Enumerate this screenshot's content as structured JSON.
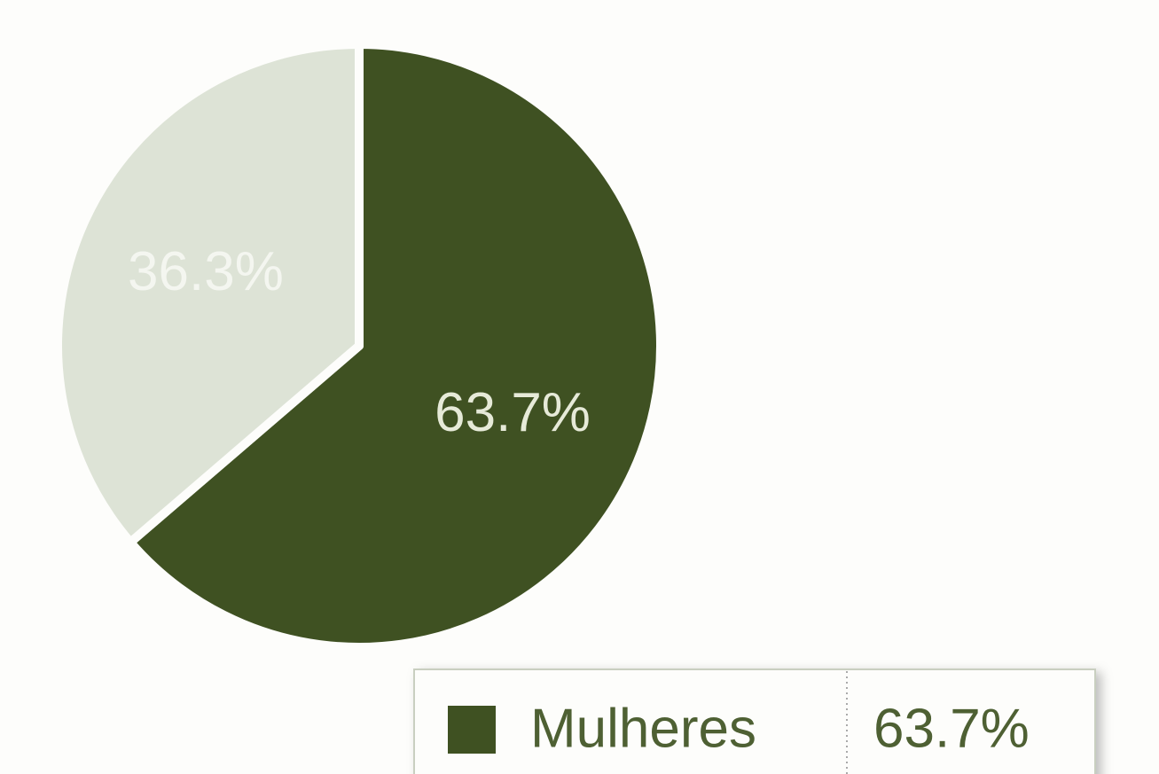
{
  "chart_data": {
    "type": "pie",
    "categories": [
      "Mulheres",
      null
    ],
    "values": [
      63.7,
      36.3
    ],
    "value_labels": [
      "63.7%",
      "36.3%"
    ],
    "colors": [
      "#3f5122",
      "#dde3d6"
    ],
    "tooltip": {
      "category": 0
    }
  }
}
